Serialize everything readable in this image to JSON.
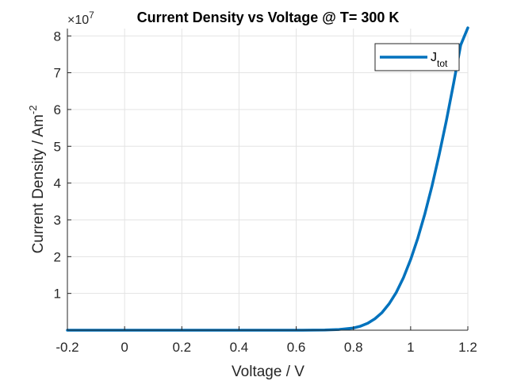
{
  "chart_data": {
    "type": "line",
    "title": "Current Density vs Voltage @ T= 300 K",
    "xlabel": "Voltage  / V",
    "ylabel_main": "Current Density  / Am",
    "ylabel_exp": "-2",
    "exponent_base": "×10",
    "exponent_power": "7",
    "xlim": [
      -0.2,
      1.2
    ],
    "ylim": [
      0,
      8.2
    ],
    "x_ticks": [
      -0.2,
      0,
      0.2,
      0.4,
      0.6,
      0.8,
      1,
      1.2
    ],
    "x_tick_labels": [
      "-0.2",
      "0",
      "0.2",
      "0.4",
      "0.6",
      "0.8",
      "1",
      "1.2"
    ],
    "y_ticks": [
      1,
      2,
      3,
      4,
      5,
      6,
      7,
      8
    ],
    "y_tick_labels": [
      "1",
      "2",
      "3",
      "4",
      "5",
      "6",
      "7",
      "8"
    ],
    "grid": true,
    "legend_position": "top-right",
    "series": [
      {
        "name_main": "J",
        "name_sub": "tot",
        "color": "#0072BD",
        "x": [
          -0.2,
          0.0,
          0.2,
          0.4,
          0.6,
          0.7,
          0.75,
          0.8,
          0.825,
          0.85,
          0.875,
          0.9,
          0.925,
          0.95,
          0.975,
          1.0,
          1.025,
          1.05,
          1.075,
          1.1,
          1.125,
          1.15,
          1.175,
          1.2
        ],
        "y": [
          0,
          0,
          0,
          0,
          0.0,
          0.005,
          0.02,
          0.06,
          0.11,
          0.19,
          0.31,
          0.48,
          0.72,
          1.03,
          1.43,
          1.92,
          2.5,
          3.17,
          3.93,
          4.78,
          5.7,
          6.7,
          7.75,
          8.22
        ]
      }
    ]
  }
}
